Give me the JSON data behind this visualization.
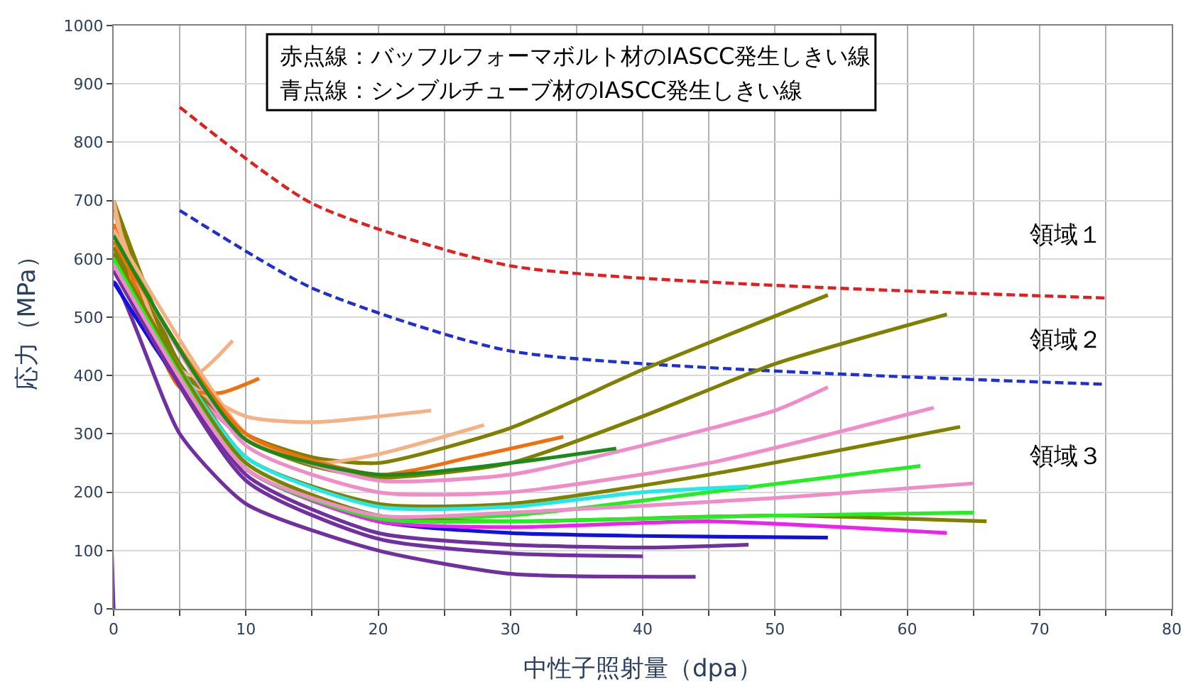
{
  "chart_data": {
    "type": "line",
    "xlabel": "中性子照射量（dpa）",
    "ylabel": "応力（MPa）",
    "xlim": [
      0,
      80
    ],
    "ylim": [
      0,
      1000
    ],
    "xticks": [
      0,
      {
        "value": 5,
        "label": null
      },
      10,
      {
        "value": 15,
        "label": null
      },
      20,
      {
        "value": 25,
        "label": null
      },
      30,
      {
        "value": 35,
        "label": null
      },
      40,
      {
        "value": 45,
        "label": null
      },
      50,
      {
        "value": 55,
        "label": null
      },
      60,
      {
        "value": 65,
        "label": null
      },
      70,
      {
        "value": 75,
        "label": null
      },
      80
    ],
    "yticks": [
      0,
      100,
      200,
      300,
      400,
      500,
      600,
      700,
      800,
      900,
      1000
    ],
    "grid": true,
    "marker": "none",
    "line_style": "solid",
    "annotations": [
      "赤点線：バッフルフォーマボルト材のIASCC発生しきい線",
      "青点線：シンブルチューブ材のIASCC発生しきい線",
      "領域１",
      "領域２",
      "領域３"
    ],
    "series": [
      {
        "color": "#e02020",
        "line_style": "dashed",
        "x": [
          5,
          15,
          30,
          75
        ],
        "values": [
          860,
          695,
          588,
          533
        ]
      },
      {
        "color": "#2030d0",
        "line_style": "dashed",
        "x": [
          5,
          15,
          30,
          75
        ],
        "values": [
          683,
          550,
          442,
          385
        ]
      },
      {
        "color": "#808000",
        "x": [
          0,
          5,
          10,
          15,
          20,
          30,
          40,
          54
        ],
        "values": [
          700,
          420,
          300,
          260,
          250,
          310,
          410,
          538
        ]
      },
      {
        "color": "#808000",
        "x": [
          0,
          5,
          10,
          15,
          20,
          30,
          40,
          50,
          63
        ],
        "values": [
          690,
          410,
          290,
          245,
          225,
          250,
          330,
          420,
          505
        ]
      },
      {
        "color": "#f08cc8",
        "x": [
          0,
          5,
          10,
          20,
          30,
          40,
          50,
          54
        ],
        "values": [
          650,
          400,
          290,
          220,
          230,
          280,
          340,
          380
        ]
      },
      {
        "color": "#f08cc8",
        "x": [
          0,
          10,
          20,
          30,
          45,
          62
        ],
        "values": [
          640,
          280,
          200,
          200,
          250,
          345
        ]
      },
      {
        "color": "#808000",
        "x": [
          0,
          10,
          20,
          30,
          45,
          64
        ],
        "values": [
          620,
          260,
          180,
          180,
          230,
          312
        ]
      },
      {
        "color": "#7030a0",
        "x": [
          0,
          0,
          5,
          10,
          20,
          30,
          44
        ],
        "values": [
          0,
          560,
          300,
          180,
          100,
          60,
          55
        ]
      },
      {
        "color": "#f4b183",
        "x": [
          0,
          3,
          6,
          9
        ],
        "values": [
          700,
          450,
          400,
          460
        ]
      },
      {
        "color": "#f4b183",
        "x": [
          0,
          5,
          10,
          15,
          24
        ],
        "values": [
          680,
          400,
          330,
          320,
          340
        ]
      },
      {
        "color": "#f07010",
        "x": [
          0,
          5,
          8,
          11
        ],
        "values": [
          660,
          380,
          370,
          395
        ]
      },
      {
        "color": "#f4b183",
        "x": [
          0,
          10,
          15,
          20,
          28
        ],
        "values": [
          650,
          300,
          250,
          265,
          315
        ]
      },
      {
        "color": "#f07010",
        "x": [
          0,
          10,
          20,
          27,
          34
        ],
        "values": [
          630,
          300,
          230,
          260,
          295
        ]
      },
      {
        "color": "#1a8a1a",
        "x": [
          0,
          10,
          20,
          30,
          38
        ],
        "values": [
          640,
          290,
          230,
          250,
          275
        ]
      },
      {
        "color": "#1010e0",
        "x": [
          0,
          10,
          20,
          30,
          40,
          54
        ],
        "values": [
          560,
          240,
          150,
          130,
          125,
          122
        ]
      },
      {
        "color": "#22ee22",
        "x": [
          0,
          10,
          20,
          30,
          45,
          61
        ],
        "values": [
          600,
          250,
          160,
          160,
          200,
          245
        ]
      },
      {
        "color": "#ee22ee",
        "x": [
          0,
          10,
          20,
          30,
          45,
          63
        ],
        "values": [
          580,
          240,
          150,
          140,
          150,
          130
        ]
      },
      {
        "color": "#22e8e8",
        "x": [
          0,
          10,
          20,
          30,
          40,
          48
        ],
        "values": [
          600,
          260,
          175,
          175,
          200,
          210
        ]
      },
      {
        "color": "#7030a0",
        "x": [
          0,
          10,
          20,
          30,
          40,
          48
        ],
        "values": [
          590,
          230,
          130,
          110,
          105,
          110
        ]
      },
      {
        "color": "#808000",
        "x": [
          0,
          10,
          20,
          30,
          50,
          66
        ],
        "values": [
          610,
          250,
          160,
          150,
          160,
          150
        ]
      },
      {
        "color": "#7030a0",
        "x": [
          0,
          10,
          20,
          30,
          40
        ],
        "values": [
          580,
          220,
          120,
          95,
          90
        ]
      },
      {
        "color": "#22ee22",
        "x": [
          0,
          10,
          20,
          30,
          50,
          65
        ],
        "values": [
          600,
          240,
          155,
          150,
          160,
          165
        ]
      },
      {
        "color": "#f08cc8",
        "x": [
          0,
          10,
          20,
          30,
          50,
          65
        ],
        "values": [
          590,
          240,
          160,
          165,
          190,
          215
        ]
      }
    ]
  }
}
